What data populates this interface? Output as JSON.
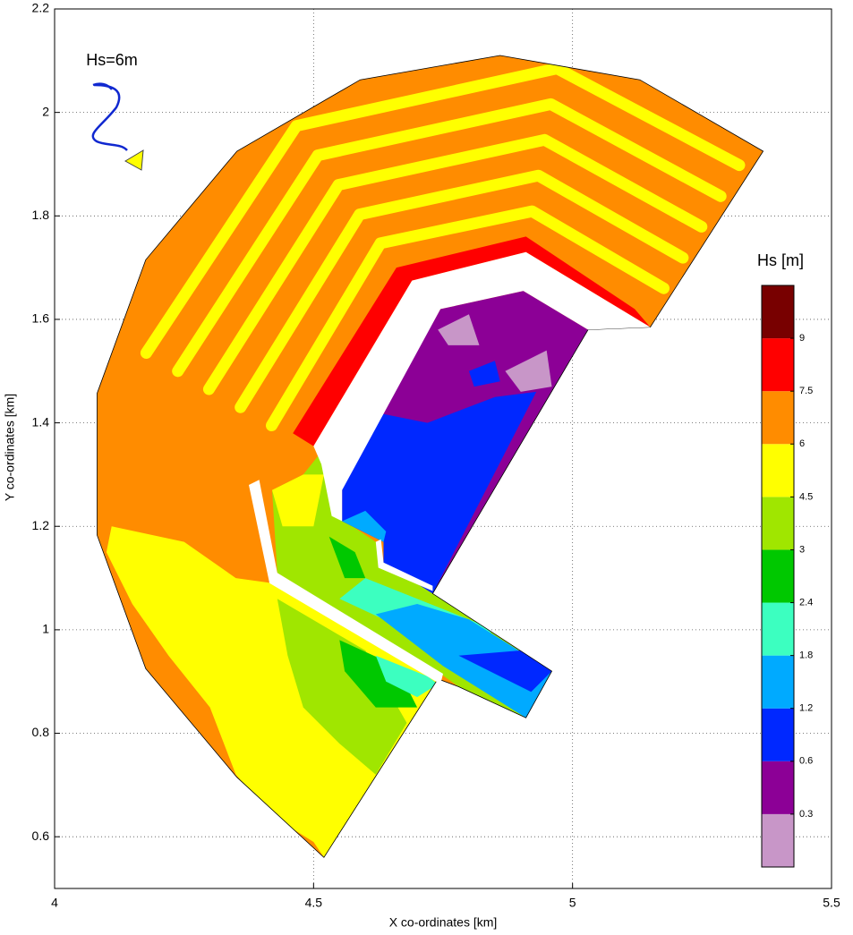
{
  "chart_data": {
    "type": "contour",
    "xlabel": "X co-ordinates [km]",
    "ylabel": "Y co-ordinates [km]",
    "xlim": [
      4,
      5.5
    ],
    "ylim": [
      0.5,
      2.2
    ],
    "xticks": [
      4,
      4.5,
      5,
      5.5
    ],
    "yticks": [
      0.6,
      0.8,
      1,
      1.2,
      1.4,
      1.6,
      1.8,
      2,
      2.2
    ],
    "grid": true,
    "annotation": "Hs=6m",
    "colorbar": {
      "title": "Hs [m]",
      "ticks": [
        0.3,
        0.6,
        1.2,
        1.8,
        2.4,
        3,
        4.5,
        6,
        7.5,
        9
      ],
      "colors": [
        "#c896c8",
        "#8c0096",
        "#0028ff",
        "#00aaff",
        "#3cffc0",
        "#00c800",
        "#a0e600",
        "#ffff00",
        "#ff8c00",
        "#ff0000",
        "#780000"
      ]
    },
    "domain": [
      [
        5.368,
        1.925
      ],
      [
        5.13,
        2.063
      ],
      [
        4.86,
        2.11
      ],
      [
        4.59,
        2.063
      ],
      [
        4.352,
        1.925
      ],
      [
        4.176,
        1.715
      ],
      [
        4.082,
        1.457
      ],
      [
        4.082,
        1.183
      ],
      [
        4.176,
        0.925
      ],
      [
        4.352,
        0.715
      ],
      [
        4.52,
        0.56
      ],
      [
        4.74,
        0.905
      ],
      [
        4.78,
        0.89
      ],
      [
        4.91,
        0.83
      ],
      [
        4.96,
        0.92
      ],
      [
        4.73,
        1.07
      ],
      [
        5.03,
        1.58
      ],
      [
        5.15,
        1.585
      ]
    ],
    "base_value": 7,
    "regions": [
      {
        "value": 5,
        "points": [
          [
            4.11,
            1.2
          ],
          [
            4.25,
            1.17
          ],
          [
            4.35,
            1.1
          ],
          [
            4.42,
            1.09
          ],
          [
            4.745,
            0.9
          ],
          [
            4.52,
            0.56
          ],
          [
            4.5,
            0.59
          ],
          [
            4.42,
            0.64
          ],
          [
            4.35,
            0.72
          ],
          [
            4.3,
            0.85
          ],
          [
            4.22,
            0.95
          ],
          [
            4.15,
            1.05
          ],
          [
            4.1,
            1.15
          ]
        ]
      },
      {
        "value": 3.5,
        "points": [
          [
            4.43,
            1.06
          ],
          [
            4.6,
            0.96
          ],
          [
            4.68,
            0.82
          ],
          [
            4.62,
            0.72
          ],
          [
            4.55,
            0.78
          ],
          [
            4.48,
            0.85
          ],
          [
            4.45,
            0.95
          ]
        ]
      },
      {
        "value": 2.7,
        "points": [
          [
            4.55,
            0.98
          ],
          [
            4.66,
            0.93
          ],
          [
            4.7,
            0.85
          ],
          [
            4.62,
            0.85
          ],
          [
            4.56,
            0.92
          ]
        ]
      },
      {
        "value": 2,
        "points": [
          [
            4.62,
            0.95
          ],
          [
            4.72,
            0.91
          ],
          [
            4.74,
            0.895
          ],
          [
            4.7,
            0.87
          ],
          [
            4.64,
            0.9
          ]
        ]
      },
      {
        "value": 8,
        "points": [
          [
            4.46,
            1.38
          ],
          [
            4.66,
            1.7
          ],
          [
            4.91,
            1.76
          ],
          [
            5.12,
            1.62
          ],
          [
            5.15,
            1.585
          ],
          [
            4.91,
            1.73
          ],
          [
            4.69,
            1.675
          ],
          [
            4.5,
            1.355
          ]
        ]
      },
      {
        "value": 3.5,
        "points": [
          [
            4.42,
            1.27
          ],
          [
            4.43,
            1.11
          ],
          [
            4.745,
            0.915
          ],
          [
            4.78,
            0.89
          ],
          [
            4.91,
            0.83
          ],
          [
            4.96,
            0.92
          ],
          [
            4.73,
            1.075
          ],
          [
            4.635,
            1.13
          ],
          [
            4.62,
            1.17
          ],
          [
            4.56,
            1.21
          ],
          [
            4.54,
            1.3
          ],
          [
            4.52,
            1.35
          ],
          [
            4.48,
            1.3
          ]
        ]
      },
      {
        "value": 2,
        "points": [
          [
            4.55,
            1.06
          ],
          [
            4.7,
            0.99
          ],
          [
            4.8,
            0.97
          ],
          [
            4.85,
            1.0
          ],
          [
            4.7,
            1.06
          ],
          [
            4.6,
            1.1
          ]
        ]
      },
      {
        "value": 1.5,
        "points": [
          [
            4.62,
            1.03
          ],
          [
            4.75,
            0.93
          ],
          [
            4.91,
            0.83
          ],
          [
            4.96,
            0.92
          ],
          [
            4.8,
            1.02
          ],
          [
            4.7,
            1.05
          ]
        ]
      },
      {
        "value": 0.9,
        "points": [
          [
            4.78,
            0.95
          ],
          [
            4.92,
            0.88
          ],
          [
            4.96,
            0.92
          ],
          [
            4.9,
            0.96
          ]
        ]
      },
      {
        "value": 5,
        "points": [
          [
            4.42,
            1.27
          ],
          [
            4.44,
            1.2
          ],
          [
            4.5,
            1.2
          ],
          [
            4.52,
            1.3
          ],
          [
            4.48,
            1.3
          ]
        ]
      },
      {
        "value": 2.7,
        "points": [
          [
            4.53,
            1.18
          ],
          [
            4.58,
            1.15
          ],
          [
            4.6,
            1.1
          ],
          [
            4.56,
            1.1
          ]
        ]
      },
      {
        "value": 0.45,
        "points": [
          [
            4.555,
            1.28
          ],
          [
            4.745,
            1.62
          ],
          [
            4.905,
            1.655
          ],
          [
            5.03,
            1.58
          ],
          [
            4.73,
            1.07
          ],
          [
            4.635,
            1.13
          ],
          [
            4.635,
            1.17
          ],
          [
            4.555,
            1.21
          ]
        ]
      },
      {
        "value": 0.9,
        "points": [
          [
            4.555,
            1.21
          ],
          [
            4.555,
            1.3
          ],
          [
            4.62,
            1.42
          ],
          [
            4.72,
            1.4
          ],
          [
            4.85,
            1.45
          ],
          [
            4.93,
            1.46
          ],
          [
            4.73,
            1.07
          ],
          [
            4.635,
            1.13
          ],
          [
            4.635,
            1.17
          ]
        ]
      },
      {
        "value": 1.5,
        "points": [
          [
            4.555,
            1.21
          ],
          [
            4.6,
            1.23
          ],
          [
            4.64,
            1.19
          ],
          [
            4.635,
            1.17
          ]
        ]
      },
      {
        "value": 0.15,
        "points": [
          [
            4.87,
            1.5
          ],
          [
            4.95,
            1.54
          ],
          [
            4.96,
            1.47
          ],
          [
            4.9,
            1.46
          ]
        ]
      },
      {
        "value": 0.15,
        "points": [
          [
            4.74,
            1.58
          ],
          [
            4.8,
            1.61
          ],
          [
            4.82,
            1.55
          ],
          [
            4.76,
            1.55
          ]
        ]
      },
      {
        "value": 0.9,
        "points": [
          [
            4.8,
            1.5
          ],
          [
            4.85,
            1.52
          ],
          [
            4.86,
            1.48
          ],
          [
            4.81,
            1.47
          ]
        ]
      }
    ],
    "stripes": [
      {
        "value": 5,
        "points": [
          [
            4.419,
            1.395
          ],
          [
            4.629,
            1.747
          ],
          [
            4.922,
            1.809
          ],
          [
            5.176,
            1.66
          ]
        ]
      },
      {
        "value": 5,
        "points": [
          [
            4.359,
            1.43
          ],
          [
            4.589,
            1.803
          ],
          [
            4.934,
            1.878
          ],
          [
            5.213,
            1.719
          ]
        ]
      },
      {
        "value": 5,
        "points": [
          [
            4.298,
            1.465
          ],
          [
            4.548,
            1.86
          ],
          [
            4.946,
            1.947
          ],
          [
            5.249,
            1.779
          ]
        ]
      },
      {
        "value": 5,
        "points": [
          [
            4.238,
            1.5
          ],
          [
            4.508,
            1.917
          ],
          [
            4.958,
            2.016
          ],
          [
            5.286,
            1.838
          ]
        ]
      },
      {
        "value": 5,
        "points": [
          [
            4.177,
            1.535
          ],
          [
            4.467,
            1.974
          ],
          [
            4.97,
            2.085
          ],
          [
            5.322,
            1.898
          ]
        ]
      }
    ],
    "land": [
      [
        [
          4.69,
          1.675
        ],
        [
          4.91,
          1.73
        ],
        [
          5.15,
          1.585
        ],
        [
          5.03,
          1.58
        ],
        [
          4.905,
          1.655
        ],
        [
          4.745,
          1.62
        ],
        [
          4.555,
          1.27
        ],
        [
          4.555,
          1.21
        ],
        [
          4.535,
          1.22
        ],
        [
          4.515,
          1.32
        ],
        [
          4.5,
          1.355
        ]
      ],
      [
        [
          4.375,
          1.28
        ],
        [
          4.395,
          1.29
        ],
        [
          4.43,
          1.11
        ],
        [
          4.75,
          0.915
        ],
        [
          4.745,
          0.895
        ],
        [
          4.415,
          1.09
        ]
      ],
      [
        [
          4.62,
          1.17
        ],
        [
          4.63,
          1.175
        ],
        [
          4.635,
          1.13
        ],
        [
          4.73,
          1.085
        ],
        [
          4.73,
          1.075
        ],
        [
          4.625,
          1.12
        ]
      ]
    ]
  }
}
